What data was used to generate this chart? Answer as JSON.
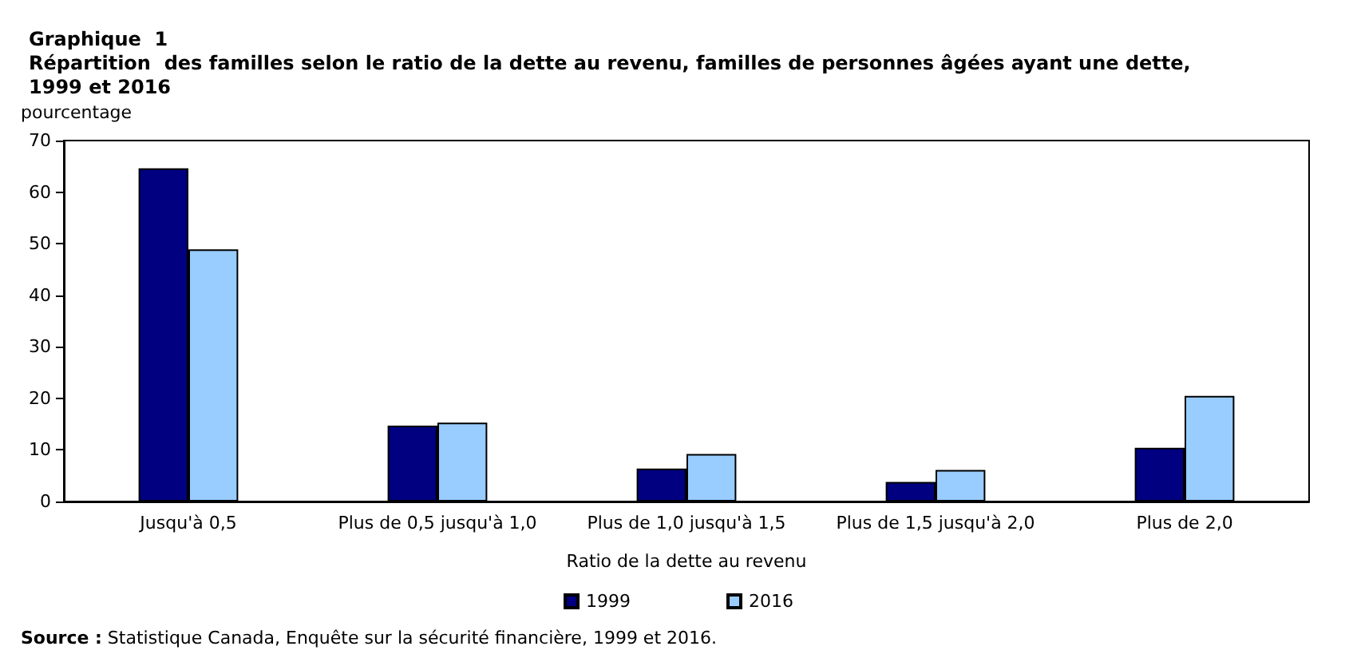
{
  "chart_data": {
    "type": "bar",
    "title": "Graphique  1\nRépartition  des familles selon le ratio de la dette au revenu, familles de personnes âgées ayant une dette,\n1999 et 2016",
    "ylabel": "pourcentage",
    "xlabel": "Ratio de la dette au revenu",
    "categories": [
      "Jusqu'à 0,5",
      "Plus de 0,5 jusqu'à 1,0",
      "Plus de 1,0 jusqu'à 1,5",
      "Plus de 1,5 jusqu'à 2,0",
      "Plus de 2,0"
    ],
    "series": [
      {
        "name": "1999",
        "color": "#000080",
        "values": [
          64.6,
          14.7,
          6.4,
          3.8,
          10.4
        ]
      },
      {
        "name": "2016",
        "color": "#99ccff",
        "values": [
          48.9,
          15.3,
          9.2,
          6.1,
          20.5
        ]
      }
    ],
    "ylim": [
      0,
      70
    ],
    "yticks": [
      0,
      10,
      20,
      30,
      40,
      50,
      60,
      70
    ],
    "grid": false,
    "legend": "bottom",
    "annotations": [
      "Source : Statistique Canada, Enquête sur la sécurité financière, 1999 et 2016."
    ]
  }
}
